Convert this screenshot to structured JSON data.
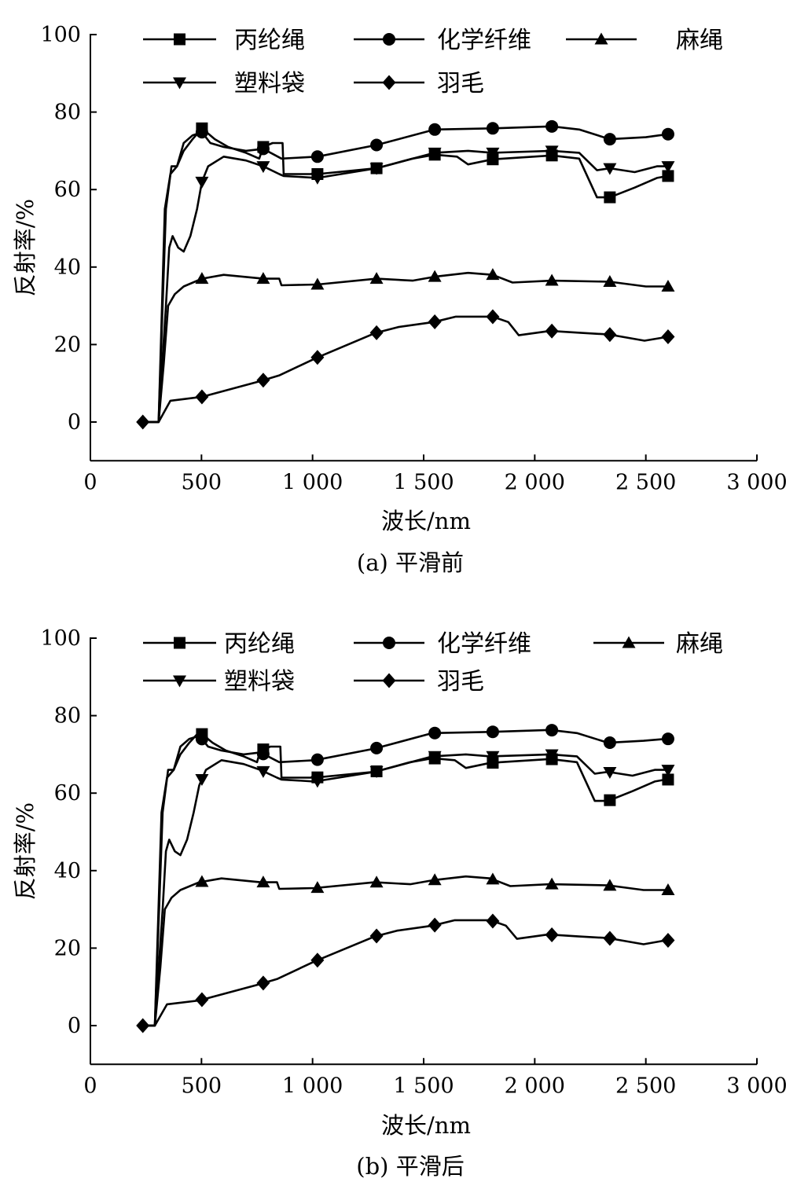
{
  "chart_data": [
    {
      "type": "line",
      "panel": "a",
      "caption": "(a) 平滑前",
      "xlabel": "波长/nm",
      "ylabel": "反射率/%",
      "xlim": [
        0,
        3000
      ],
      "ylim": [
        -10,
        100
      ],
      "xticks": [
        0,
        500,
        1000,
        1500,
        2000,
        2500,
        3000
      ],
      "xtick_labels": [
        "0",
        "500",
        "1 000",
        "1 500",
        "2 000",
        "2 500",
        "3 000"
      ],
      "yticks": [
        0,
        20,
        40,
        60,
        80,
        100
      ],
      "ytick_labels": [
        "0",
        "20",
        "40",
        "60",
        "80",
        "100"
      ],
      "legend": "top",
      "grid": false,
      "marker_x": [
        236,
        502,
        778,
        1022,
        1288,
        1550,
        1811,
        2077,
        2338,
        2600
      ],
      "series": [
        {
          "name": "丙纶绳",
          "marker": "square",
          "x": [
            236,
            307,
            335,
            360,
            390,
            420,
            460,
            502,
            560,
            620,
            700,
            760,
            778,
            820,
            865,
            870,
            1022,
            1288,
            1450,
            1550,
            1650,
            1700,
            1811,
            2077,
            2200,
            2280,
            2338,
            2450,
            2550,
            2600
          ],
          "y": [
            0,
            0,
            55,
            64,
            66,
            70,
            73,
            75.8,
            73,
            71,
            69.5,
            68,
            71,
            72,
            72,
            64,
            64,
            65.5,
            68,
            69,
            68.5,
            66.5,
            67.8,
            68.8,
            68,
            58,
            58,
            60.5,
            63,
            63.5
          ]
        },
        {
          "name": "化学纤维",
          "marker": "circle",
          "x": [
            236,
            307,
            340,
            365,
            390,
            420,
            460,
            502,
            540,
            600,
            700,
            778,
            860,
            1022,
            1288,
            1550,
            1811,
            2077,
            2200,
            2338,
            2500,
            2600
          ],
          "y": [
            0,
            0,
            55,
            66,
            66,
            72,
            74,
            74.8,
            72,
            71,
            70,
            70.5,
            68,
            68.5,
            71.5,
            75.5,
            75.8,
            76.3,
            75.5,
            73,
            73.5,
            74.3
          ]
        },
        {
          "name": "麻绳",
          "marker": "triangle-up",
          "x": [
            236,
            307,
            330,
            350,
            380,
            420,
            502,
            600,
            778,
            850,
            860,
            1022,
            1288,
            1450,
            1550,
            1700,
            1811,
            1900,
            2077,
            2338,
            2500,
            2600
          ],
          "y": [
            0,
            0,
            15,
            30,
            33,
            35,
            37,
            38,
            37,
            37,
            35.3,
            35.5,
            37,
            36.5,
            37.5,
            38.5,
            38,
            36,
            36.5,
            36.2,
            35,
            35
          ]
        },
        {
          "name": "塑料袋",
          "marker": "triangle-down",
          "x": [
            236,
            307,
            340,
            355,
            370,
            395,
            420,
            450,
            480,
            502,
            530,
            600,
            700,
            778,
            850,
            870,
            1022,
            1288,
            1550,
            1700,
            1811,
            2077,
            2200,
            2280,
            2338,
            2450,
            2550,
            2600
          ],
          "y": [
            0,
            0,
            30,
            45,
            48,
            45,
            44,
            48,
            55,
            62,
            66,
            68.5,
            67.5,
            66,
            64,
            63.5,
            63,
            65.5,
            69.5,
            70,
            69.5,
            70,
            69.5,
            65,
            65.5,
            64.5,
            66,
            66
          ]
        },
        {
          "name": "羽毛",
          "marker": "diamond",
          "x": [
            236,
            307,
            360,
            502,
            761,
            849,
            1019,
            1284,
            1385,
            1545,
            1645,
            1810,
            1881,
            1928,
            2069,
            2211,
            2335,
            2494,
            2600
          ],
          "y": [
            0,
            0,
            5.5,
            6.5,
            10.5,
            12,
            16.6,
            23,
            24.5,
            25.8,
            27.2,
            27.2,
            25.8,
            22.4,
            23.5,
            23,
            22.6,
            21,
            22
          ]
        }
      ]
    },
    {
      "type": "line",
      "panel": "b",
      "caption": "(b)  平滑后",
      "xlabel": "波长/nm",
      "ylabel": "反射率/%",
      "xlim": [
        0,
        3000
      ],
      "ylim": [
        -10,
        100
      ],
      "xticks": [
        0,
        500,
        1000,
        1500,
        2000,
        2500,
        3000
      ],
      "xtick_labels": [
        "0",
        "500",
        "1 000",
        "1 500",
        "2 000",
        "2 500",
        "3 000"
      ],
      "yticks": [
        0,
        20,
        40,
        60,
        80,
        100
      ],
      "ytick_labels": [
        "0",
        "20",
        "40",
        "60",
        "80",
        "100"
      ],
      "legend": "top",
      "grid": false,
      "marker_x": [
        236,
        502,
        778,
        1022,
        1288,
        1550,
        1811,
        2077,
        2338,
        2600
      ],
      "series": [
        {
          "name": "丙纶绳",
          "marker": "square",
          "x": [
            236,
            290,
            320,
            345,
            375,
            405,
            445,
            490,
            550,
            610,
            690,
            750,
            765,
            810,
            855,
            860,
            1010,
            1280,
            1440,
            1540,
            1640,
            1690,
            1800,
            2070,
            2190,
            2270,
            2330,
            2440,
            2540,
            2590
          ],
          "y": [
            0,
            0,
            55,
            64,
            66,
            70,
            73,
            75.8,
            73,
            71,
            69.5,
            68,
            71,
            72,
            72,
            64,
            64,
            65.5,
            68,
            69,
            68.5,
            66.5,
            67.8,
            68.8,
            68,
            58,
            58,
            60.5,
            63,
            63.5
          ]
        },
        {
          "name": "化学纤维",
          "marker": "circle",
          "x": [
            236,
            290,
            325,
            350,
            375,
            405,
            445,
            490,
            530,
            590,
            690,
            765,
            850,
            1010,
            1280,
            1540,
            1800,
            2070,
            2190,
            2330,
            2490,
            2590
          ],
          "y": [
            0,
            0,
            55,
            66,
            66,
            72,
            74,
            74.8,
            72,
            71,
            70,
            70.5,
            68,
            68.5,
            71.5,
            75.5,
            75.8,
            76.3,
            75.5,
            73,
            73.5,
            74
          ]
        },
        {
          "name": "麻绳",
          "marker": "triangle-up",
          "x": [
            236,
            290,
            315,
            335,
            365,
            405,
            490,
            590,
            765,
            840,
            850,
            1010,
            1280,
            1440,
            1540,
            1690,
            1800,
            1890,
            2070,
            2330,
            2490,
            2590
          ],
          "y": [
            0,
            0,
            15,
            30,
            33,
            35,
            37,
            38,
            37,
            37,
            35.3,
            35.5,
            37,
            36.5,
            37.5,
            38.5,
            38,
            36,
            36.5,
            36.2,
            35,
            35
          ]
        },
        {
          "name": "塑料袋",
          "marker": "triangle-down",
          "x": [
            236,
            290,
            325,
            340,
            355,
            380,
            405,
            435,
            465,
            490,
            520,
            590,
            690,
            765,
            840,
            860,
            1010,
            1280,
            1540,
            1690,
            1800,
            2070,
            2190,
            2270,
            2330,
            2440,
            2540,
            2590
          ],
          "y": [
            0,
            0,
            30,
            45,
            48,
            45,
            44,
            48,
            55,
            62,
            66,
            68.5,
            67.5,
            66,
            64,
            63.5,
            63,
            65.5,
            69.5,
            70,
            69.5,
            70,
            69.5,
            65,
            65.5,
            64.5,
            66,
            66
          ]
        },
        {
          "name": "羽毛",
          "marker": "diamond",
          "x": [
            236,
            290,
            345,
            490,
            750,
            840,
            1010,
            1280,
            1380,
            1540,
            1640,
            1800,
            1870,
            1920,
            2060,
            2200,
            2330,
            2490,
            2590
          ],
          "y": [
            0,
            0,
            5.5,
            6.5,
            10.5,
            12,
            16.6,
            23,
            24.5,
            25.8,
            27.2,
            27.2,
            25.8,
            22.4,
            23.5,
            23,
            22.6,
            21,
            22
          ]
        }
      ]
    }
  ]
}
